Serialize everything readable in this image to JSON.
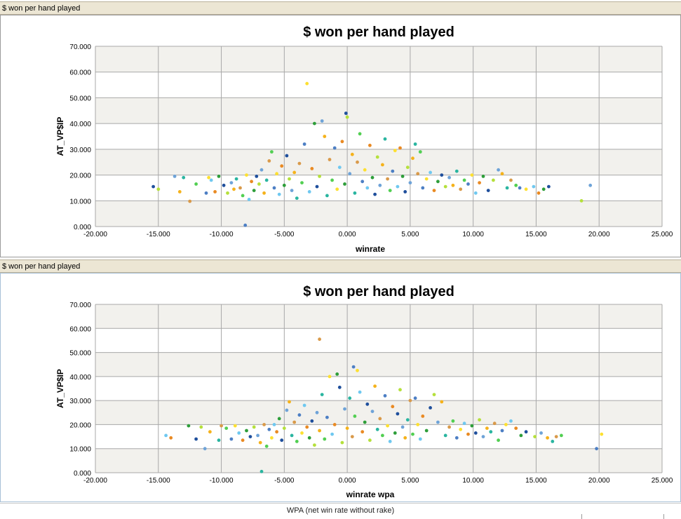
{
  "panels": [
    {
      "header": "$ won per hand played"
    },
    {
      "header": "$ won per hand played"
    }
  ],
  "footer": {
    "text": "WPA (net win rate without rake)"
  },
  "colors": {
    "plot_band": "#f2f1ed",
    "grid": "#a8a8a8",
    "points": [
      "#1f4f9c",
      "#4d7fc4",
      "#6ea3d8",
      "#6fc8f0",
      "#2ab5a0",
      "#2e9e3a",
      "#52cf52",
      "#b5e03c",
      "#fde031",
      "#f5b21b",
      "#e98a23",
      "#d99a4a"
    ]
  },
  "chart_data": [
    {
      "type": "scatter",
      "title": "$ won per hand played",
      "xlabel": "winrate",
      "ylabel": "AT_VP$IP",
      "xlim": [
        -20,
        25
      ],
      "ylim": [
        0,
        70
      ],
      "xticks": [
        "-20.000",
        "-15.000",
        "-10.000",
        "-5.000",
        "0.000",
        "5.000",
        "10.000",
        "15.000",
        "20.000",
        "25.000"
      ],
      "yticks": [
        "0.000",
        "10.000",
        "20.000",
        "30.000",
        "40.000",
        "50.000",
        "60.000",
        "70.000"
      ],
      "grid": true,
      "points": [
        [
          -15.4,
          15.5
        ],
        [
          -15.0,
          14.5
        ],
        [
          -13.7,
          19.5
        ],
        [
          -13.3,
          13.5
        ],
        [
          -13.0,
          19.0
        ],
        [
          -12.5,
          9.8
        ],
        [
          -12.0,
          16.5
        ],
        [
          -11.2,
          13.0
        ],
        [
          -11.0,
          19.0
        ],
        [
          -10.8,
          18.0
        ],
        [
          -10.5,
          13.5
        ],
        [
          -10.2,
          19.5
        ],
        [
          -9.8,
          16.0
        ],
        [
          -9.5,
          13.0
        ],
        [
          -9.2,
          17.0
        ],
        [
          -9.0,
          14.5
        ],
        [
          -8.8,
          18.5
        ],
        [
          -8.5,
          15.0
        ],
        [
          -8.3,
          12.0
        ],
        [
          -8.1,
          0.5
        ],
        [
          -8.0,
          20.0
        ],
        [
          -7.8,
          10.5
        ],
        [
          -7.6,
          17.5
        ],
        [
          -7.4,
          14.0
        ],
        [
          -7.2,
          19.5
        ],
        [
          -7.0,
          16.5
        ],
        [
          -6.8,
          22.0
        ],
        [
          -6.6,
          13.0
        ],
        [
          -6.4,
          18.0
        ],
        [
          -6.2,
          25.5
        ],
        [
          -6.0,
          29.0
        ],
        [
          -5.8,
          15.0
        ],
        [
          -5.6,
          20.5
        ],
        [
          -5.4,
          12.5
        ],
        [
          -5.2,
          23.5
        ],
        [
          -5.0,
          16.0
        ],
        [
          -4.8,
          27.5
        ],
        [
          -4.6,
          18.5
        ],
        [
          -4.4,
          14.0
        ],
        [
          -4.2,
          21.0
        ],
        [
          -4.0,
          11.0
        ],
        [
          -3.8,
          24.5
        ],
        [
          -3.6,
          17.0
        ],
        [
          -3.4,
          32.0
        ],
        [
          -3.2,
          55.5
        ],
        [
          -3.0,
          13.5
        ],
        [
          -2.8,
          22.5
        ],
        [
          -2.6,
          40.0
        ],
        [
          -2.4,
          15.5
        ],
        [
          -2.2,
          19.5
        ],
        [
          -2.0,
          41.0
        ],
        [
          -1.8,
          35.0
        ],
        [
          -1.6,
          12.0
        ],
        [
          -1.4,
          26.0
        ],
        [
          -1.2,
          18.0
        ],
        [
          -1.0,
          30.5
        ],
        [
          -0.8,
          14.5
        ],
        [
          -0.6,
          23.0
        ],
        [
          -0.4,
          33.0
        ],
        [
          -0.2,
          16.5
        ],
        [
          -0.1,
          44.0
        ],
        [
          0.0,
          42.5
        ],
        [
          0.2,
          20.5
        ],
        [
          0.4,
          28.0
        ],
        [
          0.6,
          13.0
        ],
        [
          0.8,
          25.0
        ],
        [
          1.0,
          36.0
        ],
        [
          1.2,
          17.5
        ],
        [
          1.4,
          22.0
        ],
        [
          1.6,
          15.0
        ],
        [
          1.8,
          31.5
        ],
        [
          2.0,
          19.0
        ],
        [
          2.2,
          12.5
        ],
        [
          2.4,
          27.0
        ],
        [
          2.6,
          16.0
        ],
        [
          2.8,
          24.0
        ],
        [
          3.0,
          34.0
        ],
        [
          3.2,
          18.5
        ],
        [
          3.4,
          14.0
        ],
        [
          3.6,
          21.5
        ],
        [
          3.8,
          29.5
        ],
        [
          4.0,
          15.5
        ],
        [
          4.2,
          30.5
        ],
        [
          4.4,
          19.5
        ],
        [
          4.6,
          13.5
        ],
        [
          4.8,
          23.0
        ],
        [
          5.0,
          17.0
        ],
        [
          5.2,
          26.5
        ],
        [
          5.4,
          32.0
        ],
        [
          5.6,
          20.5
        ],
        [
          5.8,
          29.0
        ],
        [
          6.0,
          15.0
        ],
        [
          6.3,
          18.5
        ],
        [
          6.6,
          21.0
        ],
        [
          6.9,
          14.0
        ],
        [
          7.2,
          17.5
        ],
        [
          7.5,
          20.0
        ],
        [
          7.8,
          15.5
        ],
        [
          8.1,
          19.0
        ],
        [
          8.4,
          16.0
        ],
        [
          8.7,
          21.5
        ],
        [
          9.0,
          14.5
        ],
        [
          9.3,
          18.0
        ],
        [
          9.6,
          16.5
        ],
        [
          9.9,
          20.0
        ],
        [
          10.2,
          13.0
        ],
        [
          10.5,
          17.0
        ],
        [
          10.8,
          19.5
        ],
        [
          11.2,
          14.0
        ],
        [
          11.6,
          18.0
        ],
        [
          12.0,
          22.0
        ],
        [
          12.3,
          20.5
        ],
        [
          12.7,
          15.0
        ],
        [
          13.0,
          18.0
        ],
        [
          13.4,
          16.0
        ],
        [
          13.7,
          15.0
        ],
        [
          14.2,
          14.5
        ],
        [
          14.8,
          15.5
        ],
        [
          15.2,
          13.0
        ],
        [
          15.6,
          14.5
        ],
        [
          16.0,
          15.5
        ],
        [
          18.6,
          10.0
        ],
        [
          19.3,
          16.0
        ]
      ]
    },
    {
      "type": "scatter",
      "title": "$ won per hand played",
      "xlabel": "winrate wpa",
      "ylabel": "AT_VP$IP",
      "xlim": [
        -20,
        25
      ],
      "ylim": [
        0,
        70
      ],
      "xticks": [
        "-20.000",
        "-15.000",
        "-10.000",
        "-5.000",
        "0.000",
        "5.000",
        "10.000",
        "15.000",
        "20.000",
        "25.000"
      ],
      "yticks": [
        "0.000",
        "10.000",
        "20.000",
        "30.000",
        "40.000",
        "50.000",
        "60.000",
        "70.000"
      ],
      "grid": true,
      "points": [
        [
          -14.4,
          15.5
        ],
        [
          -14.0,
          14.5
        ],
        [
          -12.6,
          19.5
        ],
        [
          -12.0,
          14.0
        ],
        [
          -11.6,
          19.0
        ],
        [
          -11.3,
          10.0
        ],
        [
          -10.9,
          17.0
        ],
        [
          -10.2,
          13.5
        ],
        [
          -10.0,
          19.5
        ],
        [
          -9.6,
          18.5
        ],
        [
          -9.2,
          14.0
        ],
        [
          -8.9,
          19.5
        ],
        [
          -8.6,
          16.5
        ],
        [
          -8.3,
          13.5
        ],
        [
          -8.0,
          17.5
        ],
        [
          -7.7,
          15.0
        ],
        [
          -7.4,
          19.0
        ],
        [
          -7.1,
          15.5
        ],
        [
          -6.9,
          12.5
        ],
        [
          -6.8,
          0.5
        ],
        [
          -6.6,
          20.0
        ],
        [
          -6.4,
          11.0
        ],
        [
          -6.2,
          18.0
        ],
        [
          -6.0,
          14.5
        ],
        [
          -5.8,
          20.0
        ],
        [
          -5.6,
          17.0
        ],
        [
          -5.4,
          22.5
        ],
        [
          -5.2,
          13.5
        ],
        [
          -5.0,
          18.5
        ],
        [
          -4.8,
          26.0
        ],
        [
          -4.6,
          29.5
        ],
        [
          -4.4,
          15.5
        ],
        [
          -4.2,
          21.0
        ],
        [
          -4.0,
          13.0
        ],
        [
          -3.8,
          24.0
        ],
        [
          -3.6,
          16.5
        ],
        [
          -3.4,
          28.0
        ],
        [
          -3.2,
          19.0
        ],
        [
          -3.0,
          14.5
        ],
        [
          -2.8,
          21.5
        ],
        [
          -2.6,
          11.5
        ],
        [
          -2.4,
          25.0
        ],
        [
          -2.2,
          17.5
        ],
        [
          -2.0,
          32.5
        ],
        [
          -2.2,
          55.5
        ],
        [
          -1.8,
          14.0
        ],
        [
          -1.6,
          23.0
        ],
        [
          -1.4,
          40.0
        ],
        [
          -1.2,
          16.0
        ],
        [
          -1.0,
          20.0
        ],
        [
          -0.8,
          41.0
        ],
        [
          -0.6,
          35.5
        ],
        [
          -0.4,
          12.5
        ],
        [
          -0.2,
          26.5
        ],
        [
          0.0,
          18.5
        ],
        [
          0.2,
          31.0
        ],
        [
          0.4,
          15.0
        ],
        [
          0.6,
          23.5
        ],
        [
          0.5,
          44.0
        ],
        [
          0.8,
          42.5
        ],
        [
          1.0,
          33.5
        ],
        [
          1.2,
          17.0
        ],
        [
          1.4,
          21.0
        ],
        [
          1.6,
          28.5
        ],
        [
          1.8,
          13.5
        ],
        [
          2.0,
          25.5
        ],
        [
          2.2,
          36.0
        ],
        [
          2.4,
          18.0
        ],
        [
          2.6,
          22.5
        ],
        [
          2.8,
          15.5
        ],
        [
          3.0,
          32.0
        ],
        [
          3.2,
          19.5
        ],
        [
          3.4,
          13.0
        ],
        [
          3.6,
          27.5
        ],
        [
          3.8,
          16.5
        ],
        [
          4.0,
          24.5
        ],
        [
          4.2,
          34.5
        ],
        [
          4.4,
          19.0
        ],
        [
          4.6,
          14.5
        ],
        [
          4.8,
          22.0
        ],
        [
          5.0,
          30.0
        ],
        [
          5.2,
          16.0
        ],
        [
          5.4,
          31.0
        ],
        [
          5.6,
          20.0
        ],
        [
          5.8,
          14.0
        ],
        [
          6.0,
          23.5
        ],
        [
          6.3,
          17.5
        ],
        [
          6.6,
          27.0
        ],
        [
          6.9,
          32.5
        ],
        [
          7.2,
          21.0
        ],
        [
          7.5,
          29.5
        ],
        [
          7.8,
          15.5
        ],
        [
          8.1,
          19.0
        ],
        [
          8.4,
          21.5
        ],
        [
          8.7,
          14.5
        ],
        [
          9.0,
          18.0
        ],
        [
          9.3,
          20.5
        ],
        [
          9.6,
          16.0
        ],
        [
          9.9,
          19.5
        ],
        [
          10.2,
          16.5
        ],
        [
          10.5,
          22.0
        ],
        [
          10.8,
          15.0
        ],
        [
          11.1,
          18.5
        ],
        [
          11.4,
          17.0
        ],
        [
          11.7,
          20.5
        ],
        [
          12.0,
          13.5
        ],
        [
          12.3,
          17.5
        ],
        [
          12.6,
          20.0
        ],
        [
          13.0,
          21.5
        ],
        [
          13.4,
          18.5
        ],
        [
          13.8,
          15.5
        ],
        [
          14.2,
          17.0
        ],
        [
          14.9,
          15.0
        ],
        [
          15.4,
          16.5
        ],
        [
          15.9,
          14.5
        ],
        [
          16.3,
          13.0
        ],
        [
          16.6,
          15.0
        ],
        [
          17.0,
          15.5
        ],
        [
          19.8,
          10.0
        ],
        [
          20.2,
          16.0
        ]
      ]
    }
  ]
}
